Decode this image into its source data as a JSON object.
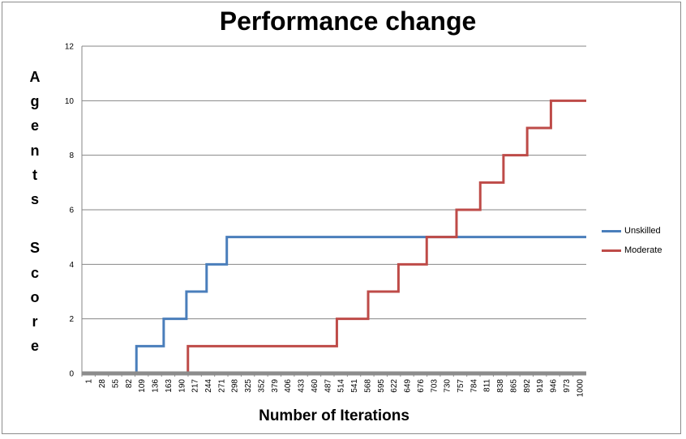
{
  "chart_data": {
    "type": "line",
    "title": "Performance change",
    "xlabel": "Number of Iterations",
    "ylabel": "Agents Score",
    "ylim": [
      0,
      12
    ],
    "yticks": [
      0,
      2,
      4,
      6,
      8,
      10,
      12
    ],
    "xlim": [
      1,
      1000
    ],
    "x_tick_labels": [
      "1",
      "28",
      "55",
      "82",
      "109",
      "136",
      "163",
      "190",
      "217",
      "244",
      "271",
      "298",
      "325",
      "352",
      "379",
      "406",
      "433",
      "460",
      "487",
      "514",
      "541",
      "568",
      "595",
      "622",
      "649",
      "676",
      "703",
      "730",
      "757",
      "784",
      "811",
      "838",
      "865",
      "892",
      "919",
      "946",
      "973",
      "1000"
    ],
    "grid": "horizontal",
    "legend_position": "right",
    "series": [
      {
        "name": "Unskilled",
        "color": "#4a7ebb",
        "steps": [
          [
            1,
            0
          ],
          [
            109,
            1
          ],
          [
            163,
            2
          ],
          [
            208,
            3
          ],
          [
            248,
            4
          ],
          [
            288,
            5
          ],
          [
            1000,
            5
          ]
        ]
      },
      {
        "name": "Moderate",
        "color": "#be4b48",
        "steps": [
          [
            1,
            0
          ],
          [
            211,
            1
          ],
          [
            506,
            2
          ],
          [
            568,
            3
          ],
          [
            628,
            4
          ],
          [
            684,
            5
          ],
          [
            743,
            6
          ],
          [
            790,
            7
          ],
          [
            836,
            8
          ],
          [
            883,
            9
          ],
          [
            930,
            10
          ],
          [
            1000,
            10
          ]
        ]
      }
    ]
  }
}
